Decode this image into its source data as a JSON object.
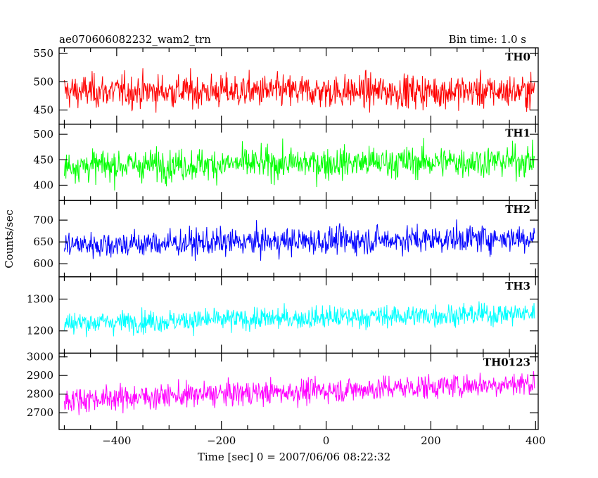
{
  "header": {
    "title": "ae070606082232_wam2_trn",
    "bin_time": "Bin time: 1.0 s"
  },
  "chart_data": {
    "type": "line",
    "xlabel": "Time [sec] 0 = 2007/06/06 08:22:32",
    "ylabel": "Counts/sec",
    "xlim": [
      -510,
      405
    ],
    "xticks": [
      -400,
      -200,
      0,
      200,
      400
    ],
    "xtick_labels": [
      "−400",
      "−200",
      "0",
      "200",
      "400"
    ],
    "x_start": -500,
    "x_end": 398,
    "bin": 1.0,
    "panels": [
      {
        "name": "TH0",
        "color": "#ff0000",
        "ylim": [
          425,
          560
        ],
        "yticks": [
          450,
          500,
          550
        ],
        "level_start": 483,
        "level_end": 483,
        "spread": 38
      },
      {
        "name": "TH1",
        "color": "#00ff00",
        "ylim": [
          370,
          520
        ],
        "yticks": [
          400,
          450,
          500
        ],
        "level_start": 438,
        "level_end": 448,
        "spread": 40
      },
      {
        "name": "TH2",
        "color": "#0000ff",
        "ylim": [
          570,
          745
        ],
        "yticks": [
          600,
          650,
          700
        ],
        "level_start": 643,
        "level_end": 660,
        "spread": 40
      },
      {
        "name": "TH3",
        "color": "#00ffff",
        "ylim": [
          1130,
          1370
        ],
        "yticks": [
          1200,
          1300
        ],
        "level_start": 1225,
        "level_end": 1255,
        "spread": 45
      },
      {
        "name": "TH0123",
        "color": "#ff00ff",
        "ylim": [
          2610,
          3020
        ],
        "yticks": [
          2700,
          2800,
          2900,
          3000
        ],
        "level_start": 2770,
        "level_end": 2860,
        "spread": 85
      }
    ]
  }
}
